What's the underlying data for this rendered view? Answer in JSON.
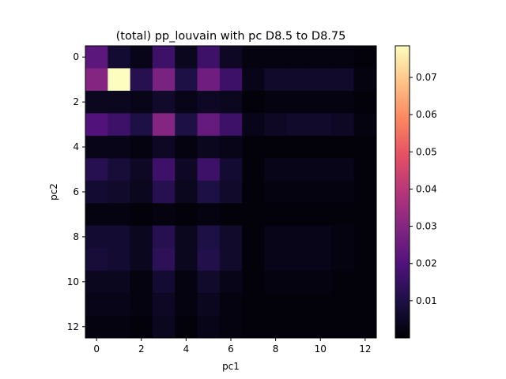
{
  "chart_data": {
    "type": "heatmap",
    "title": "(total) pp_louvain with pc D8.5 to D8.75",
    "xlabel": "pc1",
    "ylabel": "pc2",
    "x_ticks": [
      "0",
      "2",
      "4",
      "6",
      "8",
      "10",
      "12"
    ],
    "y_ticks": [
      "0",
      "2",
      "4",
      "6",
      "8",
      "10",
      "12"
    ],
    "x_tick_values": [
      0,
      2,
      4,
      6,
      8,
      10,
      12
    ],
    "y_tick_values": [
      0,
      2,
      4,
      6,
      8,
      10,
      12
    ],
    "x_range": [
      -0.5,
      12.5
    ],
    "y_range": [
      -0.5,
      12.5
    ],
    "y_inverted": true,
    "colormap": "magma",
    "colorbar": {
      "min": 0,
      "max": 0.0785,
      "ticks": [
        "0.01",
        "0.02",
        "0.03",
        "0.04",
        "0.05",
        "0.06",
        "0.07"
      ],
      "tick_values": [
        0.01,
        0.02,
        0.03,
        0.04,
        0.05,
        0.06,
        0.07
      ]
    },
    "grid": false,
    "rows": 13,
    "cols": 13,
    "values": [
      [
        0.022,
        0.007,
        0.003,
        0.016,
        0.004,
        0.016,
        0.005,
        0.002,
        0.002,
        0.002,
        0.002,
        0.002,
        0.001
      ],
      [
        0.03,
        0.0785,
        0.012,
        0.028,
        0.01,
        0.026,
        0.016,
        0.003,
        0.006,
        0.006,
        0.006,
        0.006,
        0.002
      ],
      [
        0.004,
        0.004,
        0.003,
        0.006,
        0.003,
        0.005,
        0.004,
        0.001,
        0.002,
        0.002,
        0.002,
        0.002,
        0.001
      ],
      [
        0.02,
        0.016,
        0.01,
        0.03,
        0.01,
        0.024,
        0.016,
        0.003,
        0.005,
        0.006,
        0.006,
        0.005,
        0.002
      ],
      [
        0.003,
        0.003,
        0.002,
        0.005,
        0.002,
        0.004,
        0.003,
        0.001,
        0.001,
        0.001,
        0.001,
        0.001,
        0.001
      ],
      [
        0.012,
        0.008,
        0.005,
        0.016,
        0.005,
        0.016,
        0.007,
        0.001,
        0.003,
        0.003,
        0.003,
        0.003,
        0.001
      ],
      [
        0.007,
        0.006,
        0.004,
        0.012,
        0.004,
        0.01,
        0.006,
        0.001,
        0.002,
        0.002,
        0.002,
        0.002,
        0.001
      ],
      [
        0.002,
        0.002,
        0.001,
        0.002,
        0.001,
        0.002,
        0.001,
        0.001,
        0.001,
        0.001,
        0.001,
        0.001,
        0.001
      ],
      [
        0.007,
        0.007,
        0.004,
        0.012,
        0.004,
        0.01,
        0.006,
        0.001,
        0.003,
        0.003,
        0.003,
        0.002,
        0.001
      ],
      [
        0.008,
        0.007,
        0.004,
        0.013,
        0.004,
        0.011,
        0.006,
        0.001,
        0.003,
        0.003,
        0.003,
        0.002,
        0.001
      ],
      [
        0.004,
        0.004,
        0.002,
        0.007,
        0.002,
        0.006,
        0.003,
        0.001,
        0.002,
        0.002,
        0.002,
        0.001,
        0.001
      ],
      [
        0.003,
        0.003,
        0.002,
        0.005,
        0.002,
        0.004,
        0.002,
        0.001,
        0.001,
        0.001,
        0.001,
        0.001,
        0.001
      ],
      [
        0.002,
        0.002,
        0.001,
        0.004,
        0.001,
        0.003,
        0.002,
        0.001,
        0.001,
        0.001,
        0.001,
        0.001,
        0.001
      ]
    ]
  }
}
